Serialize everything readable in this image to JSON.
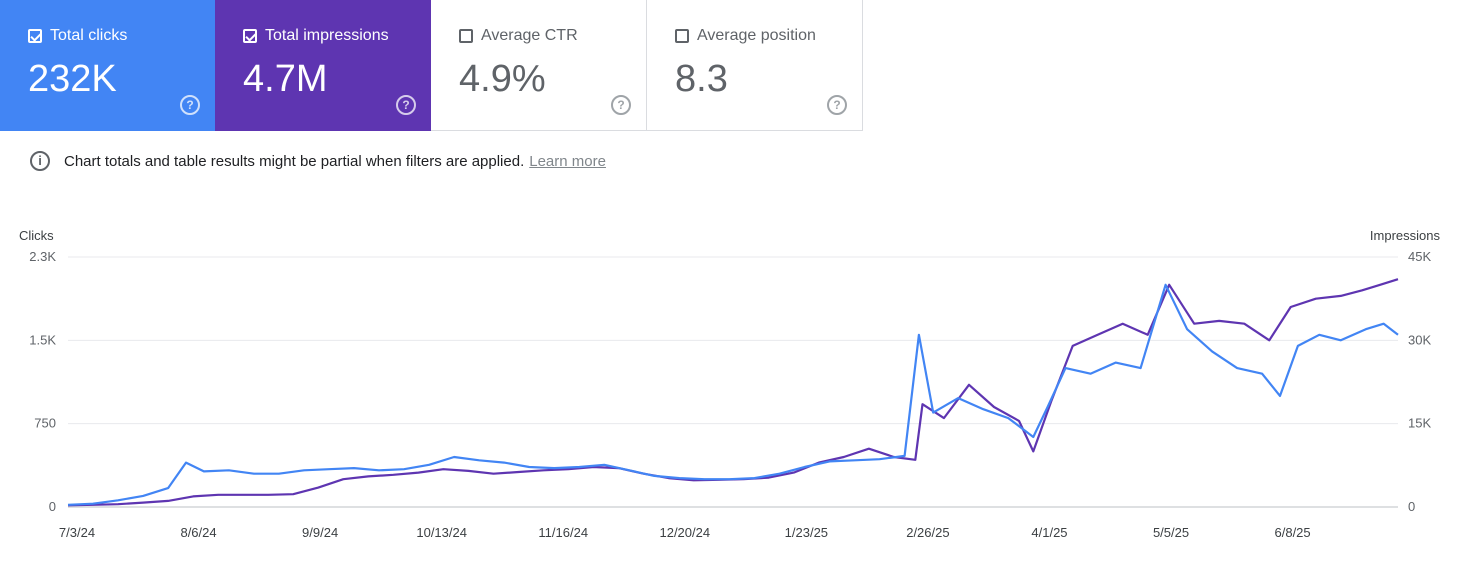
{
  "cards": [
    {
      "label": "Total clicks",
      "value": "232K",
      "checked": true
    },
    {
      "label": "Total impressions",
      "value": "4.7M",
      "checked": true
    },
    {
      "label": "Average CTR",
      "value": "4.9%",
      "checked": false
    },
    {
      "label": "Average position",
      "value": "8.3",
      "checked": false
    }
  ],
  "info": {
    "text": "Chart totals and table results might be partial when filters are applied.",
    "link": "Learn more"
  },
  "colors": {
    "clicks": "#4285f4",
    "impressions": "#5e35b1",
    "grid": "#e8eaed"
  },
  "chart_data": {
    "type": "line",
    "y_left_label": "Clicks",
    "y_right_label": "Impressions",
    "y_left_ticks": [
      "0",
      "750",
      "1.5K",
      "2.3K"
    ],
    "y_right_ticks": [
      "0",
      "15K",
      "30K",
      "45K"
    ],
    "y_left_range": [
      0,
      2250
    ],
    "y_right_range": [
      0,
      45000
    ],
    "x_ticks": [
      "7/3/24",
      "8/6/24",
      "9/9/24",
      "10/13/24",
      "11/16/24",
      "12/20/24",
      "1/23/25",
      "2/26/25",
      "4/1/25",
      "5/5/25",
      "6/8/25"
    ],
    "x_range": [
      "2024-07-03",
      "2025-07-10"
    ],
    "series": [
      {
        "name": "Total clicks",
        "axis": "left",
        "points": [
          [
            "2024-07-03",
            20
          ],
          [
            "2024-07-10",
            30
          ],
          [
            "2024-07-17",
            60
          ],
          [
            "2024-07-24",
            100
          ],
          [
            "2024-07-31",
            170
          ],
          [
            "2024-08-05",
            400
          ],
          [
            "2024-08-10",
            320
          ],
          [
            "2024-08-17",
            330
          ],
          [
            "2024-08-24",
            300
          ],
          [
            "2024-08-31",
            300
          ],
          [
            "2024-09-07",
            330
          ],
          [
            "2024-09-14",
            340
          ],
          [
            "2024-09-21",
            350
          ],
          [
            "2024-09-28",
            330
          ],
          [
            "2024-10-05",
            340
          ],
          [
            "2024-10-12",
            380
          ],
          [
            "2024-10-19",
            450
          ],
          [
            "2024-10-26",
            420
          ],
          [
            "2024-11-02",
            400
          ],
          [
            "2024-11-09",
            360
          ],
          [
            "2024-11-16",
            350
          ],
          [
            "2024-11-23",
            360
          ],
          [
            "2024-11-30",
            380
          ],
          [
            "2024-12-07",
            330
          ],
          [
            "2024-12-14",
            280
          ],
          [
            "2024-12-21",
            260
          ],
          [
            "2024-12-28",
            250
          ],
          [
            "2025-01-04",
            250
          ],
          [
            "2025-01-11",
            260
          ],
          [
            "2025-01-18",
            300
          ],
          [
            "2025-01-25",
            360
          ],
          [
            "2025-02-01",
            410
          ],
          [
            "2025-02-08",
            420
          ],
          [
            "2025-02-15",
            430
          ],
          [
            "2025-02-22",
            460
          ],
          [
            "2025-02-26",
            1550
          ],
          [
            "2025-03-02",
            850
          ],
          [
            "2025-03-09",
            980
          ],
          [
            "2025-03-16",
            880
          ],
          [
            "2025-03-23",
            800
          ],
          [
            "2025-03-30",
            630
          ],
          [
            "2025-04-03",
            900
          ],
          [
            "2025-04-08",
            1250
          ],
          [
            "2025-04-15",
            1200
          ],
          [
            "2025-04-22",
            1300
          ],
          [
            "2025-04-29",
            1250
          ],
          [
            "2025-05-06",
            2000
          ],
          [
            "2025-05-12",
            1600
          ],
          [
            "2025-05-19",
            1400
          ],
          [
            "2025-05-26",
            1250
          ],
          [
            "2025-06-02",
            1200
          ],
          [
            "2025-06-07",
            1000
          ],
          [
            "2025-06-12",
            1450
          ],
          [
            "2025-06-18",
            1550
          ],
          [
            "2025-06-24",
            1500
          ],
          [
            "2025-07-01",
            1600
          ],
          [
            "2025-07-06",
            1650
          ],
          [
            "2025-07-10",
            1550
          ]
        ]
      },
      {
        "name": "Total impressions",
        "axis": "right",
        "points": [
          [
            "2024-07-03",
            300
          ],
          [
            "2024-07-10",
            400
          ],
          [
            "2024-07-17",
            500
          ],
          [
            "2024-07-24",
            800
          ],
          [
            "2024-07-31",
            1100
          ],
          [
            "2024-08-07",
            1900
          ],
          [
            "2024-08-14",
            2200
          ],
          [
            "2024-08-21",
            2200
          ],
          [
            "2024-08-28",
            2200
          ],
          [
            "2024-09-04",
            2300
          ],
          [
            "2024-09-11",
            3500
          ],
          [
            "2024-09-18",
            5000
          ],
          [
            "2024-09-25",
            5500
          ],
          [
            "2024-10-02",
            5800
          ],
          [
            "2024-10-09",
            6200
          ],
          [
            "2024-10-16",
            6800
          ],
          [
            "2024-10-23",
            6500
          ],
          [
            "2024-10-30",
            6000
          ],
          [
            "2024-11-06",
            6300
          ],
          [
            "2024-11-13",
            6600
          ],
          [
            "2024-11-20",
            6800
          ],
          [
            "2024-11-27",
            7200
          ],
          [
            "2024-12-04",
            7000
          ],
          [
            "2024-12-11",
            6000
          ],
          [
            "2024-12-18",
            5200
          ],
          [
            "2024-12-25",
            4800
          ],
          [
            "2025-01-01",
            4900
          ],
          [
            "2025-01-08",
            5000
          ],
          [
            "2025-01-15",
            5300
          ],
          [
            "2025-01-22",
            6200
          ],
          [
            "2025-01-29",
            8000
          ],
          [
            "2025-02-05",
            9000
          ],
          [
            "2025-02-12",
            10500
          ],
          [
            "2025-02-19",
            9000
          ],
          [
            "2025-02-25",
            8500
          ],
          [
            "2025-02-27",
            18500
          ],
          [
            "2025-03-05",
            16000
          ],
          [
            "2025-03-12",
            22000
          ],
          [
            "2025-03-19",
            18000
          ],
          [
            "2025-03-26",
            15500
          ],
          [
            "2025-03-30",
            10000
          ],
          [
            "2025-04-04",
            19000
          ],
          [
            "2025-04-10",
            29000
          ],
          [
            "2025-04-17",
            31000
          ],
          [
            "2025-04-24",
            33000
          ],
          [
            "2025-05-01",
            31000
          ],
          [
            "2025-05-07",
            40000
          ],
          [
            "2025-05-14",
            33000
          ],
          [
            "2025-05-21",
            33500
          ],
          [
            "2025-05-28",
            33000
          ],
          [
            "2025-06-04",
            30000
          ],
          [
            "2025-06-10",
            36000
          ],
          [
            "2025-06-17",
            37500
          ],
          [
            "2025-06-24",
            38000
          ],
          [
            "2025-06-30",
            39000
          ],
          [
            "2025-07-05",
            40000
          ],
          [
            "2025-07-10",
            41000
          ]
        ]
      }
    ]
  }
}
